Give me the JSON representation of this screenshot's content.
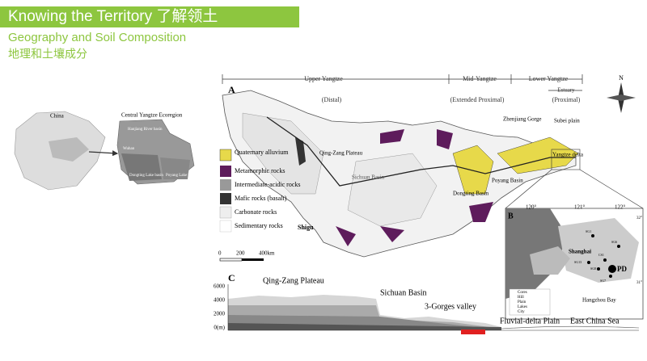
{
  "header": {
    "title": "Knowing the Territory 了解领土",
    "subtitle": "Geography and Soil Composition",
    "subtitle_cn": "地理和土壤成分"
  },
  "overview": {
    "labels": [
      "China",
      "Central Yangtze Ecoregion",
      "Hanjiang River basin",
      "Dongting Lake basin",
      "Poyang Lake basin",
      "Wuhan"
    ]
  },
  "figure": {
    "panel_a": "A",
    "panel_b": "B",
    "panel_c": "C",
    "north": "N",
    "sections": [
      {
        "name": "Upper Yangtze",
        "role": "(Distal)"
      },
      {
        "name": "Mid-Yangtze",
        "role": "(Extended Proximal)"
      },
      {
        "name": "Lower Yangtze",
        "role": "(Proximal)"
      }
    ],
    "estuary": "Estuary",
    "legend": [
      "Quaternary alluvium",
      "Metamorphic rocks",
      "Intermediate-acidic rocks",
      "Mafic rocks (basalt)",
      "Carbonate rocks",
      "Sedimentary rocks"
    ],
    "places": {
      "qz": "Qing-Zang Plateau",
      "sc": "Sichuan Basin",
      "dt": "Dongting Basin",
      "py": "Poyang Basin",
      "zj": "Zhenjiang Gorge",
      "sb": "Subei plain",
      "yd": "Yangtze delta",
      "sg": "Shigu"
    },
    "scale": [
      "0",
      "200",
      "400km"
    ],
    "inset": {
      "lon": [
        "120°",
        "121°",
        "122°"
      ],
      "lat": [
        "32°",
        "31°"
      ],
      "places": [
        "Shanghai",
        "PD",
        "Hangzhou Bay",
        "SG1",
        "SG6",
        "SG13",
        "CS1",
        "SG8",
        "SG7"
      ],
      "legend": [
        "Cores",
        "Hill",
        "Plain",
        "Lakes",
        "City"
      ]
    },
    "profile": {
      "yaxis": [
        "6000",
        "4000",
        "2000",
        "0(m)"
      ],
      "labels": [
        "Qing-Zang Plateau",
        "Sichuan Basin",
        "3-Gorges valley",
        "Fluvial-delta Plain",
        "East China Sea"
      ]
    }
  }
}
